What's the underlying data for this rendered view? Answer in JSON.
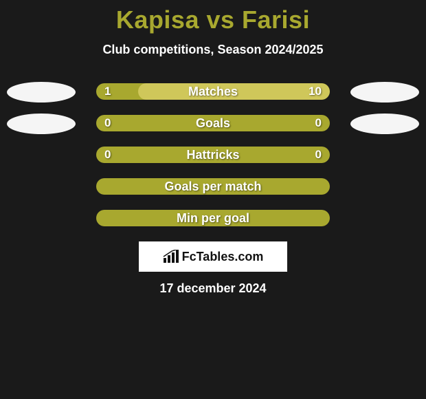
{
  "title": "Kapisa vs Farisi",
  "subtitle": "Club competitions, Season 2024/2025",
  "date": "17 december 2024",
  "brand": "FcTables.com",
  "colors": {
    "background": "#1a1a1a",
    "bar_base": "#a8a82f",
    "bar_fill": "#cfc75a",
    "title_color": "#a8a82f",
    "text_color": "#ffffff",
    "avatar_bg": "#f5f5f5",
    "logo_bg": "#ffffff"
  },
  "rows": [
    {
      "label": "Matches",
      "left_value": "1",
      "right_value": "10",
      "right_fill_pct": 82,
      "show_left_avatar": true,
      "show_right_avatar": true
    },
    {
      "label": "Goals",
      "left_value": "0",
      "right_value": "0",
      "right_fill_pct": 0,
      "show_left_avatar": true,
      "show_right_avatar": true
    },
    {
      "label": "Hattricks",
      "left_value": "0",
      "right_value": "0",
      "right_fill_pct": 0,
      "show_left_avatar": false,
      "show_right_avatar": false
    },
    {
      "label": "Goals per match",
      "left_value": "",
      "right_value": "",
      "right_fill_pct": 0,
      "show_left_avatar": false,
      "show_right_avatar": false
    },
    {
      "label": "Min per goal",
      "left_value": "",
      "right_value": "",
      "right_fill_pct": 0,
      "show_left_avatar": false,
      "show_right_avatar": false
    }
  ]
}
